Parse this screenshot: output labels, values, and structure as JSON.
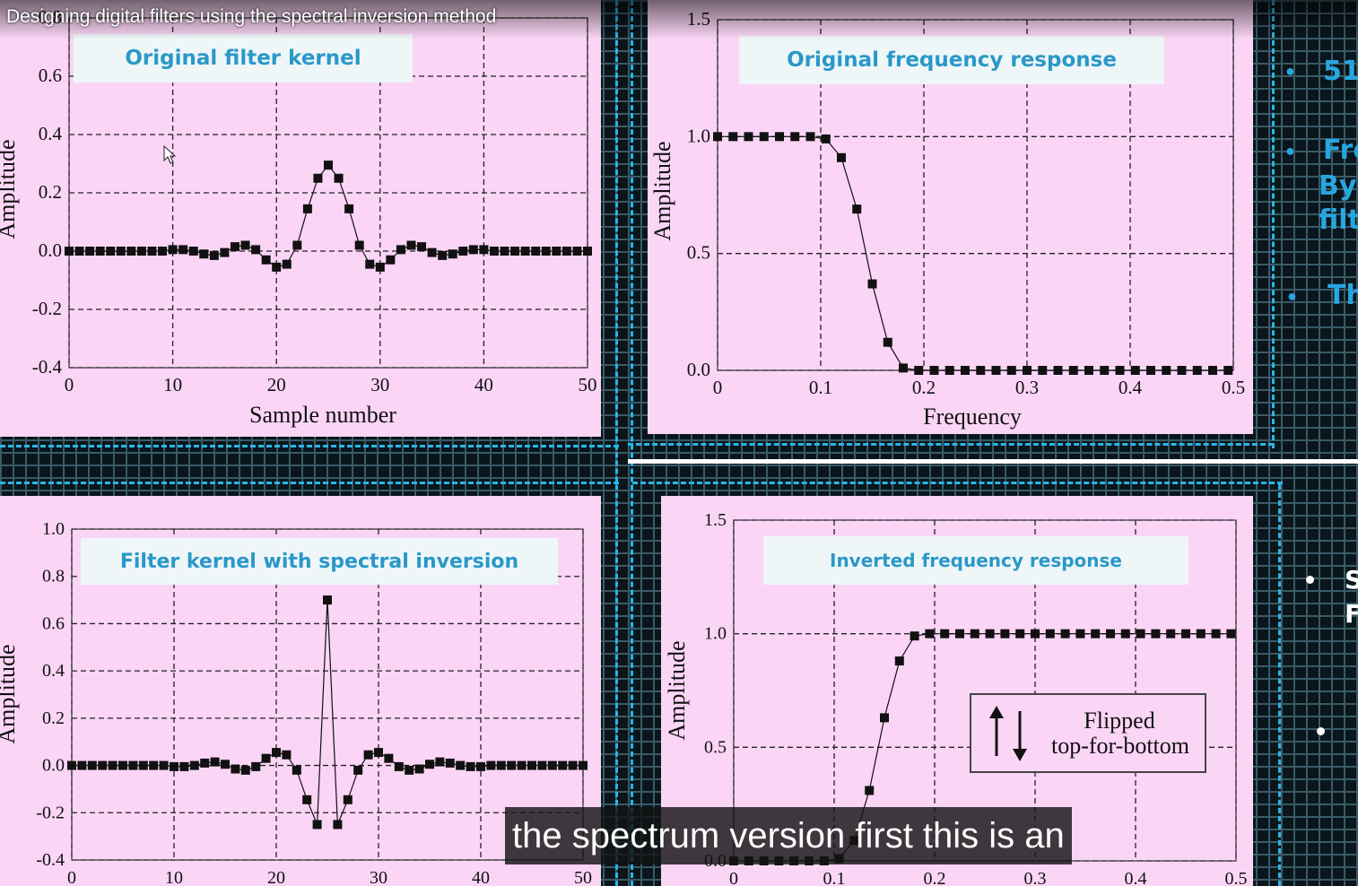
{
  "video": {
    "title": "Designing digital filters using the spectral inversion method",
    "caption": "the spectrum version first this is an"
  },
  "panels": {
    "top_left": {
      "label": "Original filter kernel",
      "ylabel": "Amplitude",
      "xlabel": "Sample number",
      "yticks": [
        "0.8",
        "0.6",
        "0.4",
        "0.2",
        "0.0",
        "-0.2",
        "-0.4"
      ],
      "xticks": [
        "0",
        "10",
        "20",
        "30",
        "40",
        "50"
      ]
    },
    "top_right": {
      "label": "Original frequency response",
      "ylabel": "Amplitude",
      "xlabel": "Frequency",
      "yticks": [
        "1.5",
        "1.0",
        "0.5",
        "0.0"
      ],
      "xticks": [
        "0",
        "0.1",
        "0.2",
        "0.3",
        "0.4",
        "0.5"
      ]
    },
    "bottom_left": {
      "label": "Filter kernel with spectral inversion",
      "ylabel": "Amplitude",
      "yticks": [
        "1.0",
        "0.8",
        "0.6",
        "0.4",
        "0.2",
        "0.0",
        "-0.2",
        "-0.4"
      ],
      "xticks": [
        "0",
        "10",
        "20",
        "30",
        "40",
        "50"
      ]
    },
    "bottom_right": {
      "label": "Inverted frequency response",
      "ylabel": "Amplitude",
      "yticks": [
        "1.5",
        "1.0",
        "0.5",
        "0.0"
      ],
      "xticks": [
        "0",
        "0.1",
        "0.2",
        "0.3",
        "0.4",
        "0.5"
      ],
      "annotation_line1": "Flipped",
      "annotation_line2": "top-for-bottom"
    }
  },
  "side_bullets": {
    "b1": "51",
    "b2a": "Fre",
    "b2b": "By",
    "b2c": "filte",
    "b3": "Th",
    "w1a": "S",
    "w1b": "F"
  },
  "chart_data": [
    {
      "type": "scatter",
      "title": "Original filter kernel",
      "xlabel": "Sample number",
      "ylabel": "Amplitude",
      "xlim": [
        0,
        50
      ],
      "ylim": [
        -0.4,
        0.8
      ],
      "x": [
        0,
        1,
        2,
        3,
        4,
        5,
        6,
        7,
        8,
        9,
        10,
        11,
        12,
        13,
        14,
        15,
        16,
        17,
        18,
        19,
        20,
        21,
        22,
        23,
        24,
        25,
        26,
        27,
        28,
        29,
        30,
        31,
        32,
        33,
        34,
        35,
        36,
        37,
        38,
        39,
        40,
        41,
        42,
        43,
        44,
        45,
        46,
        47,
        48,
        49,
        50
      ],
      "y": [
        0,
        0,
        0,
        0,
        0,
        0,
        0,
        0,
        0,
        0,
        0.005,
        0.005,
        0,
        -0.01,
        -0.015,
        -0.005,
        0.015,
        0.02,
        0.005,
        -0.03,
        -0.055,
        -0.045,
        0.02,
        0.145,
        0.25,
        0.295,
        0.25,
        0.145,
        0.02,
        -0.045,
        -0.055,
        -0.03,
        0.005,
        0.02,
        0.015,
        -0.005,
        -0.015,
        -0.01,
        0,
        0.005,
        0.005,
        0,
        0,
        0,
        0,
        0,
        0,
        0,
        0,
        0,
        0
      ]
    },
    {
      "type": "line",
      "title": "Original frequency response",
      "xlabel": "Frequency",
      "ylabel": "Amplitude",
      "xlim": [
        0,
        0.5
      ],
      "ylim": [
        0,
        1.5
      ],
      "x": [
        0,
        0.015,
        0.03,
        0.045,
        0.06,
        0.075,
        0.09,
        0.105,
        0.12,
        0.135,
        0.15,
        0.165,
        0.18,
        0.195,
        0.21,
        0.225,
        0.24,
        0.255,
        0.27,
        0.285,
        0.3,
        0.315,
        0.33,
        0.345,
        0.36,
        0.375,
        0.39,
        0.405,
        0.42,
        0.435,
        0.45,
        0.465,
        0.48,
        0.495
      ],
      "y": [
        1,
        1,
        1,
        1,
        1,
        1,
        1,
        0.99,
        0.91,
        0.69,
        0.37,
        0.12,
        0.01,
        0,
        0,
        0,
        0,
        0,
        0,
        0,
        0,
        0,
        0,
        0,
        0,
        0,
        0,
        0,
        0,
        0,
        0,
        0,
        0,
        0
      ]
    },
    {
      "type": "scatter",
      "title": "Filter kernel with spectral inversion",
      "ylabel": "Amplitude",
      "xlim": [
        0,
        50
      ],
      "ylim": [
        -0.4,
        1.0
      ],
      "x": [
        0,
        1,
        2,
        3,
        4,
        5,
        6,
        7,
        8,
        9,
        10,
        11,
        12,
        13,
        14,
        15,
        16,
        17,
        18,
        19,
        20,
        21,
        22,
        23,
        24,
        25,
        26,
        27,
        28,
        29,
        30,
        31,
        32,
        33,
        34,
        35,
        36,
        37,
        38,
        39,
        40,
        41,
        42,
        43,
        44,
        45,
        46,
        47,
        48,
        49,
        50
      ],
      "y": [
        0,
        0,
        0,
        0,
        0,
        0,
        0,
        0,
        0,
        0,
        -0.005,
        -0.005,
        0,
        0.01,
        0.015,
        0.005,
        -0.015,
        -0.02,
        -0.005,
        0.03,
        0.055,
        0.045,
        -0.02,
        -0.145,
        -0.25,
        0.7,
        -0.25,
        -0.145,
        -0.02,
        0.045,
        0.055,
        0.03,
        -0.005,
        -0.02,
        -0.015,
        0.005,
        0.015,
        0.01,
        0,
        -0.005,
        -0.005,
        0,
        0,
        0,
        0,
        0,
        0,
        0,
        0,
        0,
        0
      ]
    },
    {
      "type": "line",
      "title": "Inverted frequency response",
      "ylabel": "Amplitude",
      "xlim": [
        0,
        0.5
      ],
      "ylim": [
        0,
        1.5
      ],
      "x": [
        0,
        0.015,
        0.03,
        0.045,
        0.06,
        0.075,
        0.09,
        0.105,
        0.12,
        0.135,
        0.15,
        0.165,
        0.18,
        0.195,
        0.21,
        0.225,
        0.24,
        0.255,
        0.27,
        0.285,
        0.3,
        0.315,
        0.33,
        0.345,
        0.36,
        0.375,
        0.39,
        0.405,
        0.42,
        0.435,
        0.45,
        0.465,
        0.48,
        0.495
      ],
      "y": [
        0,
        0,
        0,
        0,
        0,
        0,
        0,
        0.01,
        0.09,
        0.31,
        0.63,
        0.88,
        0.99,
        1,
        1,
        1,
        1,
        1,
        1,
        1,
        1,
        1,
        1,
        1,
        1,
        1,
        1,
        1,
        1,
        1,
        1,
        1,
        1,
        1
      ]
    }
  ]
}
